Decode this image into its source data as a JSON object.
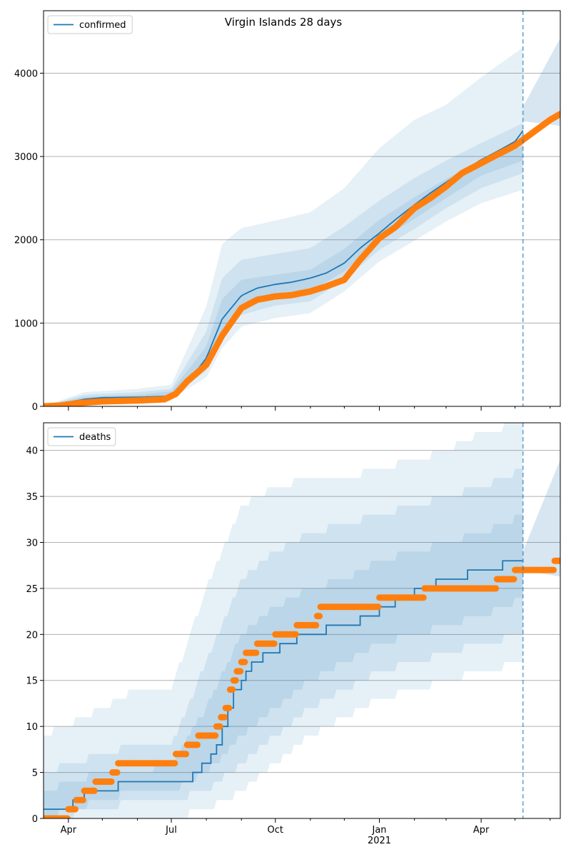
{
  "figure": {
    "title": "Virgin Islands 28 days",
    "colors": {
      "model": "#1f77b4",
      "observed": "#ff7f0e",
      "grid": "#b0b0b0",
      "band": "#1f77b4"
    }
  },
  "chart_data": [
    {
      "type": "line",
      "panel": "top",
      "title": "Virgin Islands 28 days",
      "legend": {
        "labels": [
          "confirmed"
        ],
        "placement": "top-left"
      },
      "xlabel": "",
      "ylabel": "",
      "ylim": [
        0,
        4750
      ],
      "xlim": [
        "2020-03-10",
        "2021-06-10"
      ],
      "yticks": [
        0,
        1000,
        2000,
        3000,
        4000
      ],
      "ytick_labels": [
        "0",
        "1000",
        "2000",
        "3000",
        "4000"
      ],
      "grid": "horizontal",
      "forecast_start": "2021-05-08",
      "series": [
        {
          "name": "confirmed",
          "kind": "model",
          "x": [
            "2020-03-10",
            "2020-04-01",
            "2020-04-15",
            "2020-05-01",
            "2020-06-01",
            "2020-06-25",
            "2020-07-05",
            "2020-07-15",
            "2020-08-01",
            "2020-08-15",
            "2020-09-01",
            "2020-09-15",
            "2020-10-01",
            "2020-10-15",
            "2020-11-01",
            "2020-11-15",
            "2020-12-01",
            "2020-12-15",
            "2021-01-01",
            "2021-01-15",
            "2021-02-01",
            "2021-02-15",
            "2021-03-01",
            "2021-03-15",
            "2021-04-01",
            "2021-04-15",
            "2021-05-01",
            "2021-05-08"
          ],
          "values": [
            0,
            50,
            85,
            105,
            110,
            120,
            150,
            280,
            580,
            1050,
            1330,
            1420,
            1465,
            1490,
            1540,
            1600,
            1720,
            1900,
            2080,
            2240,
            2420,
            2560,
            2690,
            2820,
            2960,
            3060,
            3180,
            3310
          ]
        },
        {
          "name": "observed",
          "kind": "observed",
          "x": [
            "2020-03-10",
            "2020-03-25",
            "2020-04-10",
            "2020-05-01",
            "2020-06-01",
            "2020-06-25",
            "2020-07-05",
            "2020-07-15",
            "2020-08-01",
            "2020-08-15",
            "2020-09-01",
            "2020-09-15",
            "2020-10-01",
            "2020-10-15",
            "2020-11-01",
            "2020-11-15",
            "2020-12-01",
            "2020-12-15",
            "2021-01-01",
            "2021-01-15",
            "2021-02-01",
            "2021-02-15",
            "2021-03-01",
            "2021-03-15",
            "2021-04-01",
            "2021-04-15",
            "2021-05-01",
            "2021-05-15",
            "2021-06-01",
            "2021-06-10"
          ],
          "values": [
            0,
            10,
            40,
            60,
            70,
            85,
            150,
            300,
            500,
            850,
            1180,
            1280,
            1320,
            1335,
            1380,
            1440,
            1520,
            1760,
            2020,
            2150,
            2380,
            2500,
            2640,
            2800,
            2920,
            3020,
            3130,
            3270,
            3440,
            3510
          ]
        }
      ],
      "intervals": [
        {
          "x": [
            "2020-03-10",
            "2020-04-15",
            "2020-06-01",
            "2020-07-01",
            "2020-08-01",
            "2020-08-15",
            "2020-09-01",
            "2020-10-01",
            "2020-11-01",
            "2020-12-01",
            "2021-01-01",
            "2021-02-01",
            "2021-03-01",
            "2021-04-01",
            "2021-05-08"
          ],
          "lower": [
            0,
            40,
            70,
            90,
            350,
            700,
            960,
            1060,
            1120,
            1380,
            1740,
            1990,
            2220,
            2440,
            2600
          ],
          "upper": [
            0,
            170,
            210,
            260,
            1200,
            1950,
            2140,
            2230,
            2330,
            2620,
            3100,
            3440,
            3620,
            3950,
            4310
          ]
        },
        {
          "x": [
            "2020-03-10",
            "2020-04-15",
            "2020-06-01",
            "2020-07-01",
            "2020-08-01",
            "2020-08-15",
            "2020-09-01",
            "2020-10-01",
            "2020-11-01",
            "2020-12-01",
            "2021-01-01",
            "2021-02-01",
            "2021-03-01",
            "2021-04-01",
            "2021-05-08"
          ],
          "lower": [
            0,
            55,
            85,
            105,
            430,
            820,
            1100,
            1210,
            1260,
            1520,
            1880,
            2130,
            2380,
            2620,
            2800
          ],
          "upper": [
            0,
            140,
            170,
            210,
            900,
            1540,
            1760,
            1830,
            1900,
            2160,
            2470,
            2740,
            2950,
            3160,
            3400
          ]
        },
        {
          "x": [
            "2020-03-10",
            "2020-04-15",
            "2020-06-01",
            "2020-07-01",
            "2020-08-01",
            "2020-08-15",
            "2020-09-01",
            "2020-10-01",
            "2020-11-01",
            "2020-12-01",
            "2021-01-01",
            "2021-02-01",
            "2021-03-01",
            "2021-04-01",
            "2021-05-08"
          ],
          "lower": [
            0,
            70,
            100,
            120,
            500,
            920,
            1200,
            1320,
            1380,
            1620,
            1990,
            2250,
            2500,
            2770,
            2950
          ],
          "upper": [
            0,
            115,
            140,
            180,
            720,
            1290,
            1520,
            1580,
            1640,
            1890,
            2240,
            2510,
            2730,
            2960,
            3120
          ]
        }
      ]
    },
    {
      "type": "line",
      "panel": "bottom",
      "title": "",
      "legend": {
        "labels": [
          "deaths"
        ],
        "placement": "top-left"
      },
      "xlabel": "",
      "ylabel": "",
      "ylim": [
        0,
        43
      ],
      "xlim": [
        "2020-03-10",
        "2021-06-10"
      ],
      "yticks": [
        0,
        5,
        10,
        15,
        20,
        25,
        30,
        35,
        40
      ],
      "ytick_labels": [
        "0",
        "5",
        "10",
        "15",
        "20",
        "25",
        "30",
        "35",
        "40"
      ],
      "xticks": [
        "2020-04-01",
        "2020-07-01",
        "2020-10-01",
        "2021-01-01",
        "2021-04-01"
      ],
      "xtick_labels": [
        "Apr",
        "Jul",
        "Oct",
        "Jan\n2021",
        "Apr"
      ],
      "grid": "horizontal",
      "forecast_start": "2021-05-08",
      "series": [
        {
          "name": "deaths",
          "kind": "model",
          "step": true,
          "x": [
            "2020-03-10",
            "2020-04-05",
            "2020-04-15",
            "2020-05-01",
            "2020-05-15",
            "2020-07-01",
            "2020-07-20",
            "2020-07-28",
            "2020-08-05",
            "2020-08-10",
            "2020-08-15",
            "2020-08-20",
            "2020-08-25",
            "2020-09-01",
            "2020-09-05",
            "2020-09-10",
            "2020-09-20",
            "2020-10-05",
            "2020-10-20",
            "2020-11-15",
            "2020-12-15",
            "2021-01-01",
            "2021-01-15",
            "2021-02-01",
            "2021-02-20",
            "2021-03-20",
            "2021-04-20",
            "2021-05-08"
          ],
          "values": [
            1,
            2,
            3,
            3,
            4,
            4,
            5,
            6,
            7,
            8,
            10,
            12,
            14,
            15,
            16,
            17,
            18,
            19,
            20,
            21,
            22,
            23,
            24,
            25,
            26,
            27,
            28,
            28
          ]
        },
        {
          "name": "observed",
          "kind": "observed",
          "x": [
            "2020-03-10",
            "2020-03-20",
            "2020-04-01",
            "2020-04-08",
            "2020-04-15",
            "2020-04-25",
            "2020-05-10",
            "2020-05-15",
            "2020-06-01",
            "2020-07-05",
            "2020-07-15",
            "2020-07-25",
            "2020-08-01",
            "2020-08-10",
            "2020-08-14",
            "2020-08-18",
            "2020-08-22",
            "2020-08-25",
            "2020-08-28",
            "2020-09-01",
            "2020-09-05",
            "2020-09-15",
            "2020-10-01",
            "2020-10-20",
            "2020-11-07",
            "2020-11-10",
            "2020-12-01",
            "2021-01-01",
            "2021-01-15",
            "2021-02-10",
            "2021-03-15",
            "2021-04-15",
            "2021-05-01",
            "2021-05-20",
            "2021-06-05",
            "2021-06-10"
          ],
          "values": [
            0,
            0,
            1,
            2,
            3,
            4,
            5,
            6,
            6,
            7,
            8,
            9,
            9,
            10,
            11,
            12,
            14,
            15,
            16,
            17,
            18,
            19,
            20,
            21,
            22,
            23,
            23,
            24,
            24,
            25,
            25,
            26,
            27,
            27,
            28,
            28
          ]
        }
      ],
      "intervals": [
        {
          "x": [
            "2020-03-10",
            "2020-05-01",
            "2020-06-01",
            "2020-07-01",
            "2020-08-01",
            "2020-09-01",
            "2020-10-01",
            "2020-11-01",
            "2020-12-01",
            "2021-01-01",
            "2021-02-01",
            "2021-03-01",
            "2021-04-01",
            "2021-05-08"
          ],
          "lower": [
            0,
            0,
            0,
            0,
            1,
            3,
            6,
            9,
            11,
            13,
            14,
            15,
            16,
            17
          ],
          "upper": [
            9,
            12,
            14,
            14,
            25,
            34,
            36,
            37,
            37,
            38,
            39,
            40,
            42,
            43
          ]
        },
        {
          "x": [
            "2020-03-10",
            "2020-05-01",
            "2020-06-01",
            "2020-07-01",
            "2020-08-01",
            "2020-09-01",
            "2020-10-01",
            "2020-11-01",
            "2020-12-01",
            "2021-01-01",
            "2021-02-01",
            "2021-03-01",
            "2021-04-01",
            "2021-05-08"
          ],
          "lower": [
            0,
            1,
            2,
            2,
            3,
            6,
            9,
            12,
            14,
            16,
            17,
            18,
            19,
            20
          ],
          "upper": [
            5,
            7,
            8,
            8,
            17,
            26,
            29,
            31,
            32,
            33,
            34,
            35,
            36,
            38
          ]
        },
        {
          "x": [
            "2020-03-10",
            "2020-05-01",
            "2020-06-01",
            "2020-07-01",
            "2020-08-01",
            "2020-09-01",
            "2020-10-01",
            "2020-11-01",
            "2020-12-01",
            "2021-01-01",
            "2021-02-01",
            "2021-03-01",
            "2021-04-01",
            "2021-05-08"
          ],
          "lower": [
            0,
            2,
            3,
            3,
            5,
            9,
            12,
            15,
            17,
            19,
            20,
            21,
            22,
            24
          ],
          "upper": [
            3,
            5,
            5,
            6,
            12,
            20,
            23,
            25,
            26,
            28,
            29,
            30,
            31,
            33
          ]
        }
      ]
    }
  ]
}
